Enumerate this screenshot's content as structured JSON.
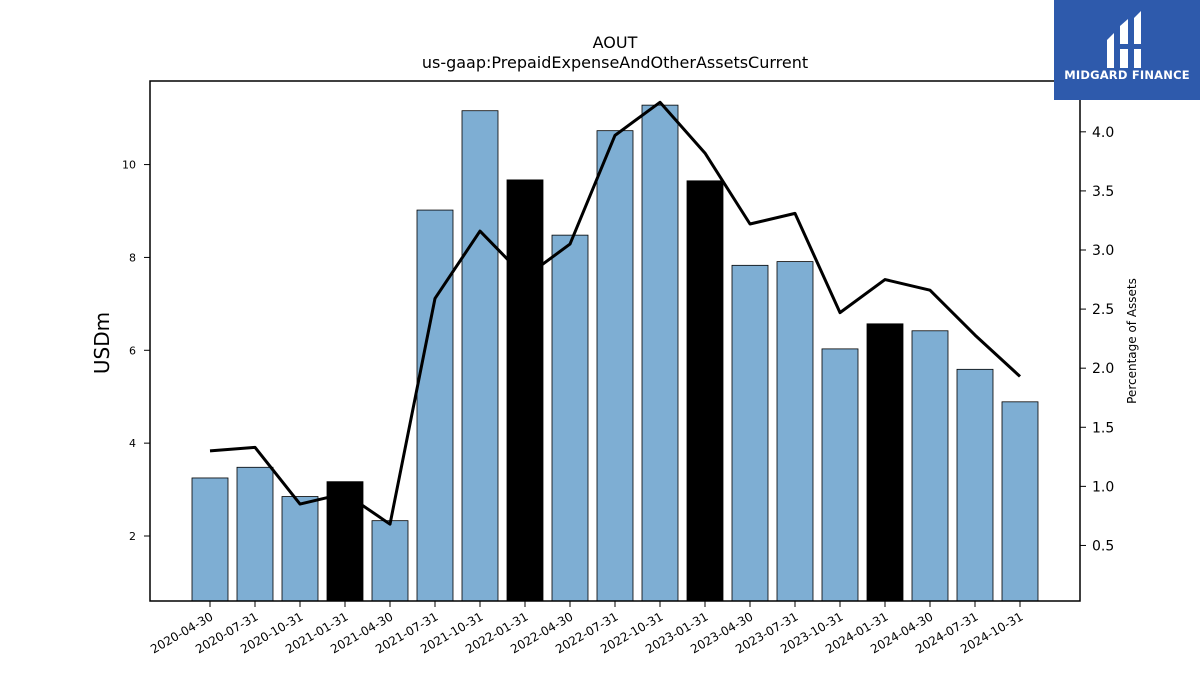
{
  "chart_data": {
    "type": "bar",
    "title": "AOUT",
    "subtitle": "us-gaap:PrepaidExpenseAndOtherAssetsCurrent",
    "ylabel": "USDm",
    "y2label": "Percentage of Assets",
    "ylim": [
      0.6,
      11.8
    ],
    "y2lim": [
      0.03,
      4.43
    ],
    "yticks": [
      2,
      4,
      6,
      8,
      10
    ],
    "y2ticks": [
      0.5,
      1.0,
      1.5,
      2.0,
      2.5,
      3.0,
      3.5,
      4.0
    ],
    "grid": false,
    "categories": [
      "2020-04-30",
      "2020-07-31",
      "2020-10-31",
      "2021-01-31",
      "2021-04-30",
      "2021-07-31",
      "2021-10-31",
      "2022-01-31",
      "2022-04-30",
      "2022-07-31",
      "2022-10-31",
      "2023-01-31",
      "2023-04-30",
      "2023-07-31",
      "2023-10-31",
      "2024-01-31",
      "2024-04-30",
      "2024-07-31",
      "2024-10-31"
    ],
    "series": [
      {
        "kind": "bar",
        "axis": "left",
        "values": [
          3.25,
          3.48,
          2.85,
          3.17,
          2.33,
          9.02,
          11.16,
          9.67,
          8.48,
          10.73,
          11.28,
          9.65,
          7.83,
          7.91,
          6.03,
          6.57,
          6.42,
          5.59,
          4.89
        ],
        "highlight": [
          false,
          false,
          false,
          true,
          false,
          false,
          false,
          true,
          false,
          false,
          false,
          true,
          false,
          false,
          false,
          true,
          false,
          false,
          false
        ]
      },
      {
        "kind": "line",
        "axis": "right",
        "values": [
          1.3,
          1.33,
          0.85,
          0.94,
          0.68,
          2.59,
          3.16,
          2.77,
          3.05,
          3.97,
          4.25,
          3.82,
          3.22,
          3.31,
          2.47,
          2.75,
          2.66,
          2.28,
          1.93
        ]
      }
    ],
    "colors": {
      "bar": "#7eaed3",
      "bar_highlight": "#000000",
      "line": "#000000"
    }
  },
  "logo": {
    "text": "MIDGARD FINANCE",
    "background": "#2e5aac"
  }
}
